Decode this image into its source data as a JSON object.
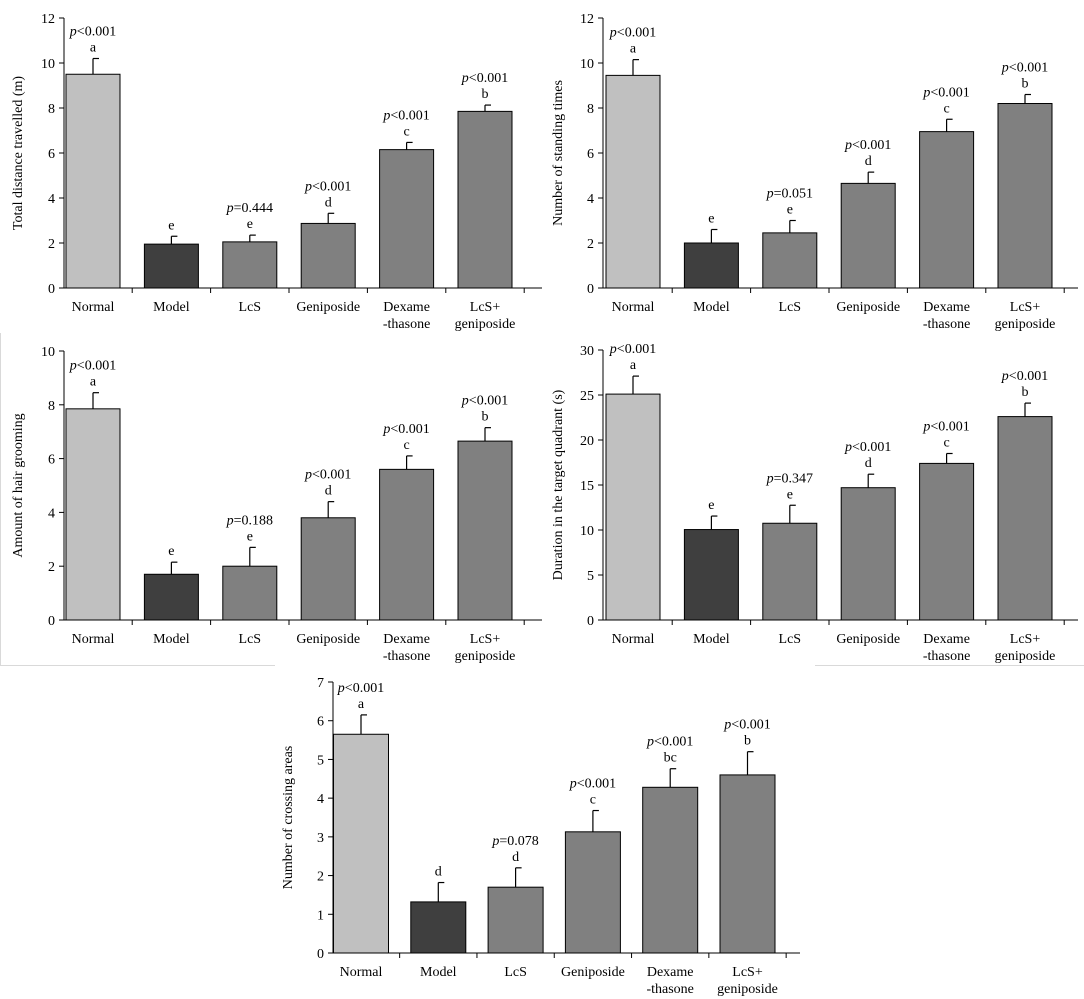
{
  "figure": {
    "categories": [
      [
        "Normal"
      ],
      [
        "Model"
      ],
      [
        "LcS"
      ],
      [
        "Geniposide"
      ],
      [
        "Dexame",
        "-thasone"
      ],
      [
        "LcS+",
        "geniposide"
      ]
    ],
    "colors": {
      "normal": "#c0c0c0",
      "model": "#3f3f3f",
      "treatment": "#808080",
      "axis": "#000000"
    }
  },
  "chart_data": [
    {
      "id": "panel-a",
      "type": "bar",
      "ylabel": "Total distance travelled (m)",
      "ylim": [
        0,
        12
      ],
      "yticks": [
        0,
        2,
        4,
        6,
        8,
        10,
        12
      ],
      "values": [
        9.5,
        1.95,
        2.05,
        2.87,
        6.15,
        7.85
      ],
      "errors": [
        0.7,
        0.35,
        0.3,
        0.45,
        0.32,
        0.28
      ],
      "letters": [
        "a",
        "e",
        "e",
        "d",
        "c",
        "b"
      ],
      "pvalues": [
        "<0.001",
        "",
        "=0.444",
        "<0.001",
        "<0.001",
        "<0.001"
      ]
    },
    {
      "id": "panel-b",
      "type": "bar",
      "ylabel": "Number of standing times",
      "ylim": [
        0,
        12
      ],
      "yticks": [
        0,
        2,
        4,
        6,
        8,
        10,
        12
      ],
      "values": [
        9.45,
        2.0,
        2.45,
        4.65,
        6.95,
        8.2
      ],
      "errors": [
        0.7,
        0.6,
        0.55,
        0.5,
        0.55,
        0.4
      ],
      "letters": [
        "a",
        "e",
        "e",
        "d",
        "c",
        "b"
      ],
      "pvalues": [
        "<0.001",
        "",
        "=0.051",
        "<0.001",
        "<0.001",
        "<0.001"
      ]
    },
    {
      "id": "panel-c",
      "type": "bar",
      "ylabel": "Amount of hair grooming",
      "ylim": [
        0,
        10
      ],
      "yticks": [
        0,
        2,
        4,
        6,
        8,
        10
      ],
      "values": [
        7.85,
        1.7,
        2.0,
        3.8,
        5.6,
        6.65
      ],
      "errors": [
        0.6,
        0.45,
        0.7,
        0.6,
        0.5,
        0.5
      ],
      "letters": [
        "a",
        "e",
        "e",
        "d",
        "c",
        "b"
      ],
      "pvalues": [
        "<0.001",
        "",
        "=0.188",
        "<0.001",
        "<0.001",
        "<0.001"
      ]
    },
    {
      "id": "panel-d",
      "type": "bar",
      "ylabel": "Duration in the target quadrant (s)",
      "ylim": [
        0,
        30
      ],
      "yticks": [
        0,
        5,
        10,
        15,
        20,
        25,
        30
      ],
      "values": [
        25.1,
        10.05,
        10.75,
        14.7,
        17.4,
        22.6
      ],
      "errors": [
        2.0,
        1.5,
        2.0,
        1.5,
        1.1,
        1.5
      ],
      "letters": [
        "a",
        "e",
        "e",
        "d",
        "c",
        "b"
      ],
      "pvalues": [
        "<0.001",
        "",
        "=0.347",
        "<0.001",
        "<0.001",
        "<0.001"
      ]
    },
    {
      "id": "panel-e",
      "type": "bar",
      "ylabel": "Number of crossing areas",
      "ylim": [
        0,
        7
      ],
      "yticks": [
        0,
        1,
        2,
        3,
        4,
        5,
        6,
        7
      ],
      "values": [
        5.65,
        1.32,
        1.7,
        3.13,
        4.28,
        4.6
      ],
      "errors": [
        0.5,
        0.5,
        0.5,
        0.55,
        0.48,
        0.6
      ],
      "letters": [
        "a",
        "d",
        "d",
        "c",
        "bc",
        "b"
      ],
      "pvalues": [
        "<0.001",
        "",
        "=0.078",
        "<0.001",
        "<0.001",
        "<0.001"
      ]
    }
  ]
}
